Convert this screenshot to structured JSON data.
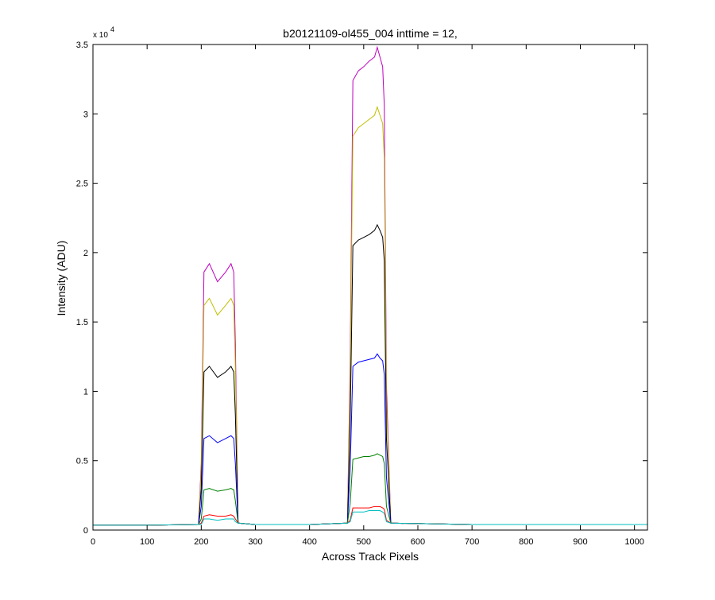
{
  "chart_data": {
    "type": "line",
    "title": "b20121109-ol455_004 inttime = 12,",
    "x_label": "Across Track Pixels",
    "y_label": "Intensity (ADU)",
    "y_exponent_base": "x 10",
    "y_exponent": "4",
    "xlim": [
      0,
      1024
    ],
    "ylim": [
      0,
      3.5
    ],
    "xticks": [
      0,
      100,
      200,
      300,
      400,
      500,
      600,
      700,
      800,
      900,
      1000
    ],
    "yticks": [
      0,
      0.5,
      1,
      1.5,
      2,
      2.5,
      3,
      3.5
    ],
    "grid": false,
    "x": [
      0,
      100,
      195,
      200,
      205,
      215,
      230,
      245,
      255,
      260,
      263,
      268,
      300,
      400,
      470,
      475,
      480,
      490,
      500,
      510,
      520,
      525,
      530,
      535,
      538,
      542,
      550,
      700,
      1024
    ],
    "series": [
      {
        "color": "#bf00bf",
        "values": [
          0.035,
          0.035,
          0.04,
          0.48,
          1.86,
          1.92,
          1.79,
          1.86,
          1.92,
          1.86,
          1.34,
          0.05,
          0.04,
          0.04,
          0.05,
          1.22,
          3.24,
          3.31,
          3.34,
          3.38,
          3.41,
          3.48,
          3.41,
          3.34,
          3.06,
          1.04,
          0.05,
          0.04,
          0.04
        ]
      },
      {
        "color": "#bfbf00",
        "values": [
          0.035,
          0.035,
          0.04,
          0.42,
          1.62,
          1.67,
          1.55,
          1.62,
          1.67,
          1.62,
          1.17,
          0.05,
          0.04,
          0.04,
          0.05,
          1.07,
          2.84,
          2.9,
          2.93,
          2.96,
          2.99,
          3.05,
          2.99,
          2.93,
          2.68,
          0.92,
          0.05,
          0.04,
          0.04
        ]
      },
      {
        "color": "#000000",
        "values": [
          0.035,
          0.035,
          0.04,
          0.3,
          1.14,
          1.18,
          1.1,
          1.14,
          1.18,
          1.14,
          0.83,
          0.05,
          0.04,
          0.04,
          0.05,
          0.77,
          2.05,
          2.09,
          2.11,
          2.13,
          2.16,
          2.2,
          2.16,
          2.11,
          1.94,
          0.66,
          0.05,
          0.04,
          0.04
        ]
      },
      {
        "color": "#0000ff",
        "values": [
          0.035,
          0.035,
          0.04,
          0.17,
          0.66,
          0.68,
          0.63,
          0.66,
          0.68,
          0.66,
          0.48,
          0.05,
          0.04,
          0.04,
          0.05,
          0.44,
          1.18,
          1.21,
          1.22,
          1.23,
          1.24,
          1.27,
          1.24,
          1.22,
          1.12,
          0.38,
          0.05,
          0.04,
          0.04
        ]
      },
      {
        "color": "#008000",
        "values": [
          0.035,
          0.035,
          0.04,
          0.08,
          0.29,
          0.3,
          0.28,
          0.29,
          0.3,
          0.29,
          0.21,
          0.05,
          0.04,
          0.04,
          0.05,
          0.19,
          0.51,
          0.52,
          0.53,
          0.53,
          0.54,
          0.55,
          0.54,
          0.53,
          0.48,
          0.17,
          0.05,
          0.04,
          0.04
        ]
      },
      {
        "color": "#ff0000",
        "values": [
          0.035,
          0.035,
          0.04,
          0.05,
          0.1,
          0.11,
          0.1,
          0.1,
          0.11,
          0.1,
          0.08,
          0.05,
          0.04,
          0.04,
          0.05,
          0.07,
          0.16,
          0.16,
          0.16,
          0.16,
          0.17,
          0.17,
          0.17,
          0.16,
          0.15,
          0.07,
          0.05,
          0.04,
          0.04
        ]
      },
      {
        "color": "#00bfbf",
        "values": [
          0.035,
          0.035,
          0.04,
          0.04,
          0.08,
          0.08,
          0.07,
          0.08,
          0.08,
          0.08,
          0.06,
          0.05,
          0.04,
          0.04,
          0.05,
          0.06,
          0.13,
          0.13,
          0.13,
          0.14,
          0.14,
          0.14,
          0.14,
          0.13,
          0.12,
          0.06,
          0.05,
          0.04,
          0.04
        ]
      }
    ]
  }
}
